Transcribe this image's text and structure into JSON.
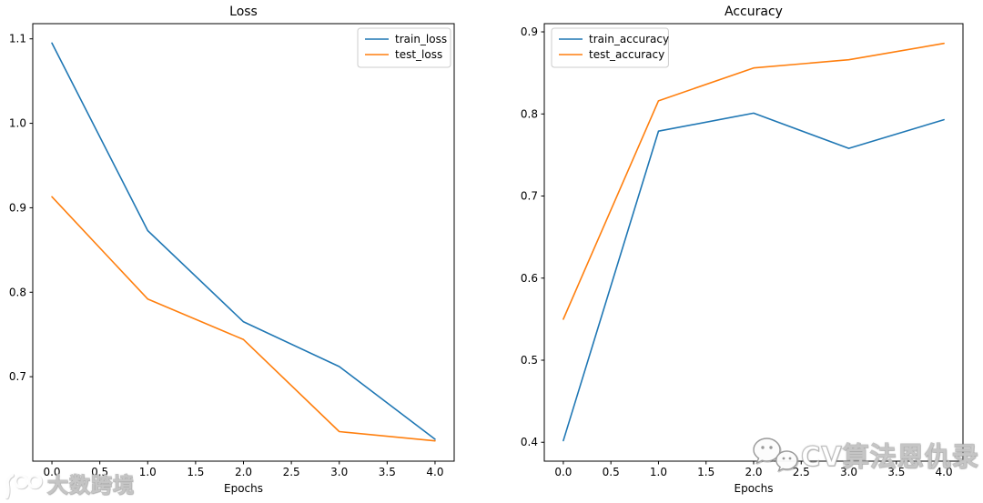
{
  "figure": {
    "background": "#ffffff",
    "text_color": "#000000",
    "spine_color": "#000000",
    "legend_border_color": "#cccccc"
  },
  "watermarks": {
    "left": {
      "text": "大数跨境",
      "icon": "dashu-logo-icon"
    },
    "right": {
      "text": "CV算法恩仇录",
      "icon": "wechat-icon"
    }
  },
  "chart_data": [
    {
      "type": "line",
      "title": "Loss",
      "xlabel": "Epochs",
      "ylabel": "",
      "x": [
        0,
        1,
        2,
        3,
        4
      ],
      "series": [
        {
          "name": "train_loss",
          "color": "#1f77b4",
          "values": [
            1.095,
            0.873,
            0.765,
            0.712,
            0.626
          ]
        },
        {
          "name": "test_loss",
          "color": "#ff7f0e",
          "values": [
            0.913,
            0.792,
            0.744,
            0.635,
            0.624
          ]
        }
      ],
      "xlim": [
        -0.2,
        4.2
      ],
      "ylim": [
        0.6,
        1.118
      ],
      "xticks": {
        "values": [
          0,
          0.5,
          1,
          1.5,
          2,
          2.5,
          3,
          3.5,
          4
        ],
        "labels": [
          "0.0",
          "0.5",
          "1.0",
          "1.5",
          "2.0",
          "2.5",
          "3.0",
          "3.5",
          "4.0"
        ]
      },
      "yticks": {
        "values": [
          0.7,
          0.8,
          0.9,
          1.0,
          1.1
        ],
        "labels": [
          "0.7",
          "0.8",
          "0.9",
          "1.0",
          "1.1"
        ]
      },
      "grid": false,
      "legend_loc": "upper right"
    },
    {
      "type": "line",
      "title": "Accuracy",
      "xlabel": "Epochs",
      "ylabel": "",
      "x": [
        0,
        1,
        2,
        3,
        4
      ],
      "series": [
        {
          "name": "train_accuracy",
          "color": "#1f77b4",
          "values": [
            0.402,
            0.779,
            0.801,
            0.758,
            0.793
          ]
        },
        {
          "name": "test_accuracy",
          "color": "#ff7f0e",
          "values": [
            0.55,
            0.816,
            0.856,
            0.866,
            0.886
          ]
        }
      ],
      "xlim": [
        -0.2,
        4.2
      ],
      "ylim": [
        0.377,
        0.91
      ],
      "xticks": {
        "values": [
          0,
          0.5,
          1,
          1.5,
          2,
          2.5,
          3,
          3.5,
          4
        ],
        "labels": [
          "0.0",
          "0.5",
          "1.0",
          "1.5",
          "2.0",
          "2.5",
          "3.0",
          "3.5",
          "4.0"
        ]
      },
      "yticks": {
        "values": [
          0.4,
          0.5,
          0.6,
          0.7,
          0.8,
          0.9
        ],
        "labels": [
          "0.4",
          "0.5",
          "0.6",
          "0.7",
          "0.8",
          "0.9"
        ]
      },
      "grid": false,
      "legend_loc": "upper left"
    }
  ]
}
